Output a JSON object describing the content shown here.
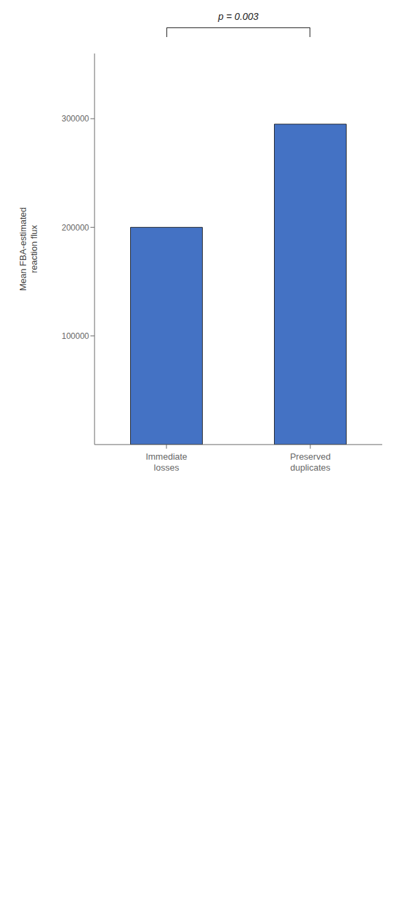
{
  "chart_data": {
    "type": "bar",
    "categories": [
      "Immediate\nlosses",
      "Preserved\nduplicates"
    ],
    "values": [
      200000,
      295000
    ],
    "color": "#4472C4",
    "y_label": "Mean FBA-estimated\nreaction flux",
    "ylim": [
      0,
      360000
    ],
    "yticks": [
      100000,
      200000,
      300000
    ],
    "annotations": [
      {
        "text": "p = 0.003"
      }
    ],
    "grid": false
  }
}
